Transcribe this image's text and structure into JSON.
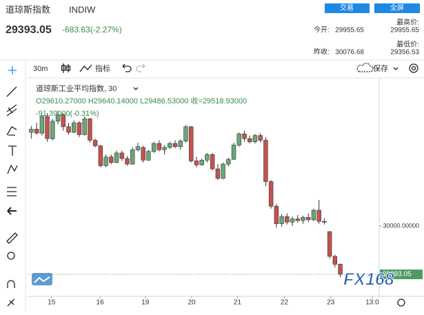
{
  "header": {
    "title": "道琼斯指数",
    "symbol": "INDIW",
    "price": "29393.05",
    "change": "-683.63(-2.27%)",
    "buttons": [
      "交易",
      "全屏"
    ],
    "stats": [
      {
        "label": "今开:",
        "value": "29955.65"
      },
      {
        "label": "最高价:",
        "value": "29955.65"
      },
      {
        "label": "昨收:",
        "value": "30076.68"
      },
      {
        "label": "最低价:",
        "value": "29356.53"
      }
    ]
  },
  "toolbar": {
    "interval": "30m",
    "indicators": "指标",
    "save": "保存"
  },
  "legend": {
    "name": "道琼斯工业平均指数, 30",
    "ohlc": "O29610.27000 H29640.14000 L29486.53000 收=29518.93000",
    "change": "-91.39000(-0.31%)"
  },
  "logo": "FX168",
  "chart_data": {
    "type": "candlestick",
    "up_color": "#6aa77a",
    "down_color": "#c4534e",
    "open": [
      31180,
      31220,
      31170,
      31380,
      31100,
      31320,
      31400,
      31250,
      31180,
      31300,
      31150,
      31350,
      31080,
      31010,
      30760,
      30870,
      30800,
      30920,
      30850,
      30780,
      30960,
      30990,
      30830,
      30940,
      31040,
      30960,
      30990,
      31040,
      31000,
      31070,
      31250,
      30820,
      30770,
      30830,
      30900,
      30720,
      30600,
      30780,
      30840,
      31020,
      31160,
      31100,
      31060,
      31140,
      31080,
      30560,
      30250,
      30030,
      30120,
      30050,
      30090,
      30070,
      30110,
      30080,
      30200,
      30060,
      29930,
      29620,
      29520
    ],
    "high": [
      31260,
      31300,
      31400,
      31420,
      31350,
      31450,
      31420,
      31300,
      31330,
      31320,
      31380,
      31360,
      31100,
      31020,
      30900,
      30900,
      30950,
      30950,
      30880,
      30990,
      31050,
      31010,
      30960,
      31060,
      31080,
      31020,
      31060,
      31080,
      31090,
      31270,
      31260,
      30870,
      30850,
      30920,
      30920,
      30780,
      30800,
      30860,
      31050,
      31180,
      31200,
      31140,
      31160,
      31170,
      31120,
      30580,
      30280,
      30150,
      30160,
      30120,
      30140,
      30130,
      30160,
      30220,
      30330,
      30100,
      29940,
      29640,
      29530
    ],
    "low": [
      31100,
      31150,
      31140,
      31060,
      31080,
      31280,
      31200,
      31150,
      31170,
      31120,
      31140,
      31050,
      30990,
      30740,
      30740,
      30780,
      30790,
      30820,
      30760,
      30770,
      30940,
      30800,
      30820,
      30920,
      30940,
      30900,
      30970,
      30980,
      30960,
      31050,
      30800,
      30740,
      30760,
      30800,
      30700,
      30580,
      30590,
      30750,
      30830,
      31000,
      31060,
      31040,
      31040,
      31050,
      30500,
      30220,
      29980,
      29990,
      30020,
      30000,
      30040,
      30030,
      30050,
      30060,
      30030,
      30020,
      29590,
      29480,
      29360
    ],
    "close": [
      31220,
      31170,
      31380,
      31100,
      31320,
      31400,
      31250,
      31180,
      31300,
      31150,
      31350,
      31080,
      31010,
      30760,
      30870,
      30800,
      30920,
      30850,
      30780,
      30960,
      31000,
      30830,
      30940,
      31040,
      30960,
      30990,
      31040,
      31000,
      31070,
      31250,
      30820,
      30770,
      30830,
      30900,
      30720,
      30600,
      30780,
      30840,
      31020,
      31160,
      31100,
      31060,
      31140,
      31080,
      30560,
      30250,
      30030,
      30120,
      30050,
      30090,
      30070,
      30110,
      30080,
      30200,
      30060,
      30050,
      29620,
      29520,
      29393.05
    ],
    "xlim": [
      -0.7,
      65.3
    ],
    "xticks": [
      {
        "value": 3.8,
        "label": "15"
      },
      {
        "value": 12.9,
        "label": "16"
      },
      {
        "value": 21.4,
        "label": "19"
      },
      {
        "value": 30.1,
        "label": "20"
      },
      {
        "value": 38.7,
        "label": "21"
      },
      {
        "value": 47.5,
        "label": "22"
      },
      {
        "value": 56.2,
        "label": "23"
      },
      {
        "value": 64,
        "label": "13:0"
      }
    ],
    "ylim": [
      29116,
      31847
    ],
    "yticks": [
      {
        "value": 30000,
        "label": "30000.00000"
      }
    ],
    "last_price": 29393.05,
    "last_color": "#4f9a63"
  }
}
